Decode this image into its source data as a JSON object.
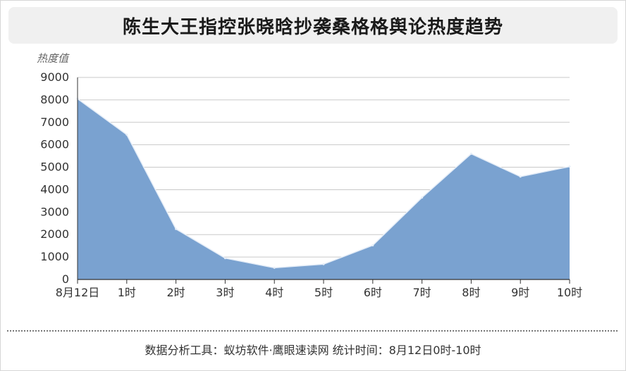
{
  "chart_data": {
    "type": "area",
    "title": "陈生大王指控张晓晗抄袭桑格格舆论热度趋势",
    "ylabel": "热度值",
    "xlabel": "",
    "categories": [
      "8月12日",
      "1时",
      "2时",
      "3时",
      "4时",
      "5时",
      "6时",
      "7时",
      "8时",
      "9时",
      "10时"
    ],
    "series": [
      {
        "values": [
          8050,
          6450,
          2250,
          950,
          520,
          680,
          1520,
          3650,
          5600,
          4580,
          5030
        ]
      }
    ],
    "ylim": [
      0,
      9000
    ],
    "yticks": [
      0,
      1000,
      2000,
      3000,
      4000,
      5000,
      6000,
      7000,
      8000,
      9000
    ],
    "grid": true,
    "colors": {
      "fill": "#7aa2d0",
      "line": "#e6eef8",
      "grid": "#c9c9c9"
    }
  },
  "footer": {
    "text": "数据分析工具：蚁坊软件·鹰眼速读网   统计时间：8月12日0时-10时"
  }
}
